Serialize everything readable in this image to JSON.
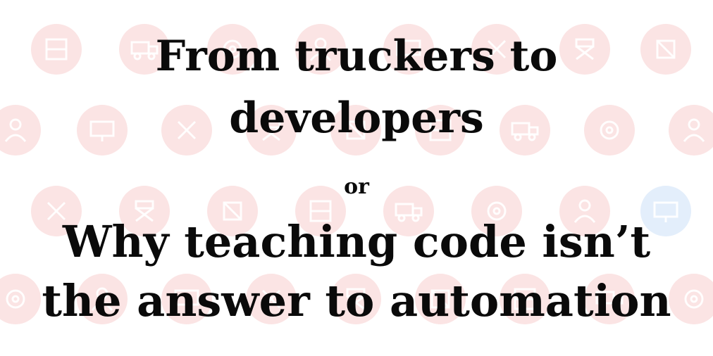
{
  "title": {
    "line1": "From truckers to",
    "line2": "developers"
  },
  "connector": "or",
  "subtitle": {
    "line1": "Why teaching code isn’t",
    "line2": "the answer to automation"
  },
  "colors": {
    "text": "#0a0a0a",
    "background": "#ffffff",
    "pattern_red": "#fbe4e4",
    "pattern_blue": "#e3eefb"
  },
  "pattern_icons": [
    "cart-icon",
    "truck-icon",
    "gear-icon",
    "person-icon",
    "monitor-icon",
    "wrench-icon",
    "chair-icon",
    "box-icon"
  ]
}
